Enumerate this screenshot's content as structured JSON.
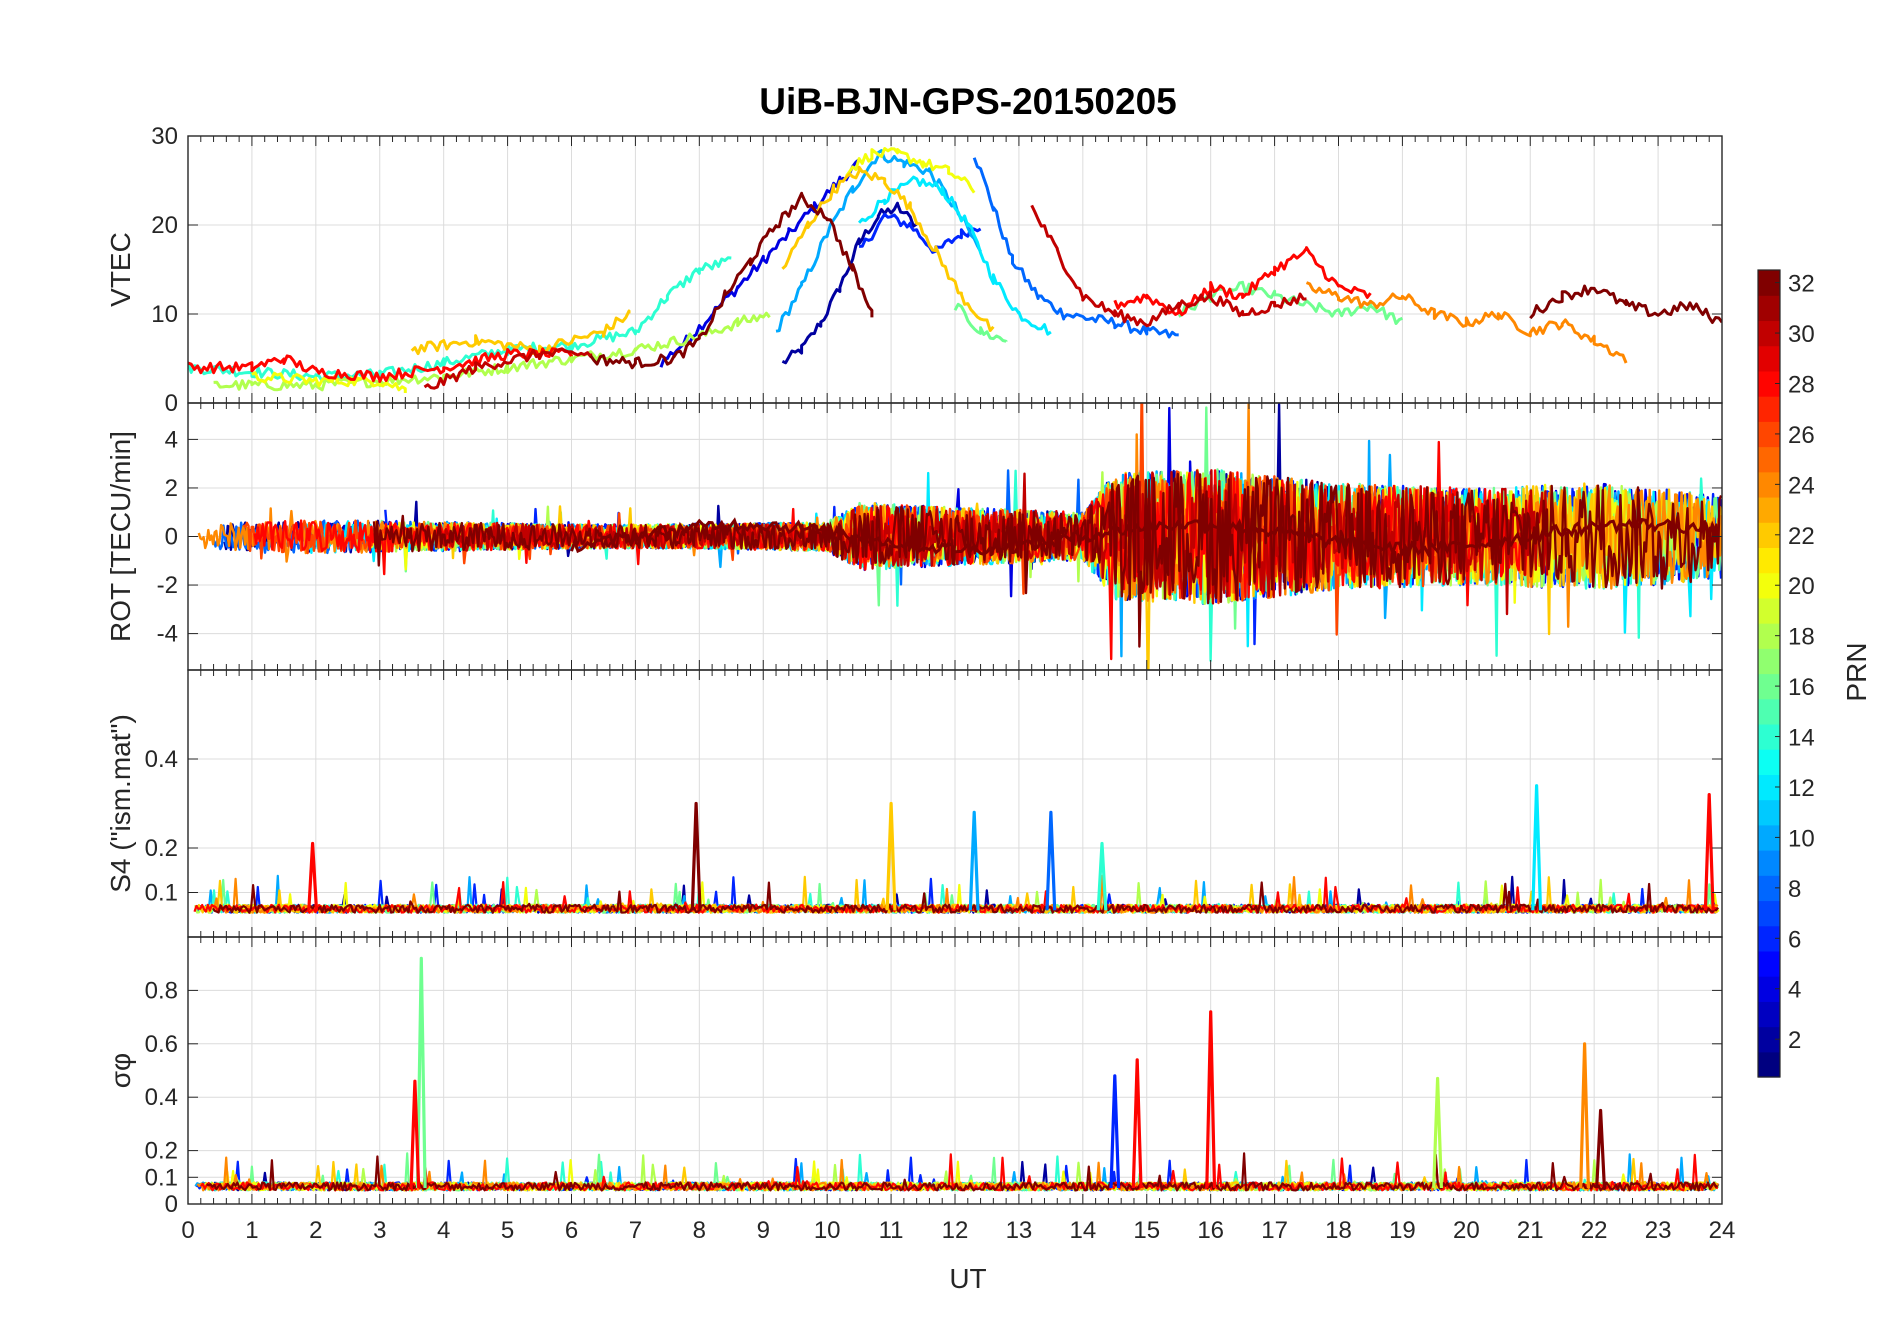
{
  "figure": {
    "title": "UiB-BJN-GPS-20150205",
    "x_label": "UT",
    "colorbar_label": "PRN"
  },
  "chart_data": [
    {
      "type": "line",
      "panel": "vtec",
      "ylabel": "VTEC",
      "xlim": [
        0,
        24
      ],
      "ylim": [
        0,
        30
      ],
      "yticks": [
        0,
        10,
        20,
        30
      ],
      "grid": true,
      "series": [
        {
          "prn": 2,
          "x": [
            9.3,
            9.6,
            9.9,
            10.2,
            10.5,
            10.8,
            11.1,
            11.4
          ],
          "y": [
            4.5,
            6,
            9,
            13,
            18,
            21,
            22,
            20
          ]
        },
        {
          "prn": 4,
          "x": [
            7.4,
            7.8,
            8.2,
            8.6,
            9,
            9.4,
            9.8,
            10.2,
            10.5
          ],
          "y": [
            4.5,
            7,
            10,
            13,
            16,
            19,
            22,
            25,
            27
          ]
        },
        {
          "prn": 6,
          "x": [
            10.5,
            10.9,
            11.3,
            11.7,
            12.1,
            12.4
          ],
          "y": [
            17,
            21,
            20,
            17,
            19,
            20
          ]
        },
        {
          "prn": 8,
          "x": [
            12.3,
            12.6,
            12.9,
            13.3,
            13.7,
            14.1,
            14.5,
            15,
            15.5
          ],
          "y": [
            28,
            22,
            16,
            12,
            10,
            9.5,
            9,
            8,
            7.5
          ]
        },
        {
          "prn": 10,
          "x": [
            9.2,
            9.6,
            10,
            10.4,
            10.8,
            11.2,
            11.6,
            12,
            12.4
          ],
          "y": [
            8,
            13,
            19,
            24,
            28,
            27,
            26,
            22,
            17
          ]
        },
        {
          "prn": 12,
          "x": [
            10.5,
            10.9,
            11.4,
            11.8,
            12.2,
            12.6,
            13,
            13.5
          ],
          "y": [
            20,
            23,
            25,
            24,
            20,
            14,
            10,
            8
          ]
        },
        {
          "prn": 14,
          "x": [
            0,
            1,
            2,
            3,
            4,
            5,
            6,
            7,
            7.5,
            8,
            8.5
          ],
          "y": [
            4,
            3.5,
            3,
            3.2,
            4.5,
            6,
            6.5,
            8,
            12,
            15,
            16
          ]
        },
        {
          "prn": 16,
          "x": [
            12,
            12.4,
            12.8,
            15.5,
            16,
            16.5,
            17,
            17.5,
            18,
            18.5,
            19
          ],
          "y": [
            11,
            8,
            7,
            10,
            12,
            13,
            12,
            11,
            10,
            11,
            9
          ]
        },
        {
          "prn": 18,
          "x": [
            0.4,
            1,
            2,
            3,
            4,
            5,
            6,
            7,
            8,
            8.6,
            9.1
          ],
          "y": [
            2,
            2,
            2,
            2.5,
            3,
            4,
            5,
            6,
            7.5,
            9,
            10
          ]
        },
        {
          "prn": 20,
          "x": [
            1,
            2,
            3,
            3.4,
            10.3,
            10.7,
            11.1,
            11.5,
            11.9,
            12.3
          ],
          "y": [
            3,
            2.5,
            2.5,
            1.5,
            26,
            28,
            28,
            27,
            26,
            24
          ]
        },
        {
          "prn": 22,
          "x": [
            3.5,
            4.5,
            5.5,
            6.5,
            6.9,
            9.3,
            9.7,
            10.1,
            10.5,
            10.9,
            11.3,
            11.7,
            12.1,
            12.6
          ],
          "y": [
            6,
            7,
            6,
            8,
            10,
            15,
            20,
            24,
            26,
            25,
            22,
            17,
            12,
            8
          ]
        },
        {
          "prn": 24,
          "x": [
            17.5,
            18,
            18.5,
            19,
            19.5,
            20,
            20.5,
            21,
            21.5,
            22,
            22.5
          ],
          "y": [
            13,
            12,
            11,
            12,
            10,
            9,
            10,
            8,
            9,
            7,
            5
          ]
        },
        {
          "prn": 28,
          "x": [
            0,
            1,
            1.5,
            2,
            3,
            4,
            5,
            6,
            14.5,
            15,
            15.5,
            16,
            16.5,
            17,
            17.5,
            18,
            18.5
          ],
          "y": [
            4,
            4,
            5,
            3.5,
            3,
            4,
            5.5,
            5.5,
            11,
            12,
            10,
            13,
            12,
            15,
            17,
            13,
            12
          ]
        },
        {
          "prn": 30,
          "x": [
            3.7,
            4.5,
            5.5,
            6.3,
            13.2,
            13.6,
            14,
            14.5,
            15,
            15.5,
            16,
            16.5,
            17,
            17.5
          ],
          "y": [
            1.5,
            4,
            5.5,
            5.5,
            22,
            17,
            12,
            10,
            9,
            11,
            12,
            10,
            11,
            12
          ]
        },
        {
          "prn": 32,
          "x": [
            6.3,
            7,
            7.6,
            8,
            8.4,
            8.8,
            9.2,
            9.6,
            10,
            10.4,
            10.7,
            21,
            21.5,
            22,
            22.5,
            23,
            23.5,
            24
          ],
          "y": [
            5,
            4.5,
            5,
            7,
            12,
            16,
            20,
            23,
            21,
            15,
            10,
            10,
            12,
            13,
            11,
            10,
            11,
            9
          ]
        }
      ]
    },
    {
      "type": "line",
      "panel": "rot",
      "ylabel": "ROT [TECU/min]",
      "xlim": [
        0,
        24
      ],
      "ylim": [
        -5.5,
        5.5
      ],
      "yticks": [
        -4,
        -2,
        0,
        2,
        4
      ],
      "grid": true,
      "note_profile": {
        "x": [
          0,
          2,
          4,
          6,
          8,
          10,
          10.5,
          12,
          14,
          14.5,
          16,
          18,
          20,
          22,
          24
        ],
        "amplitude": [
          0.5,
          0.7,
          0.6,
          0.5,
          0.5,
          0.6,
          1.4,
          1.2,
          1.0,
          2.6,
          2.8,
          2.2,
          2.0,
          2.2,
          1.8
        ]
      }
    },
    {
      "type": "line",
      "panel": "s4",
      "ylabel": "S4 (\"ism.mat\")",
      "xlim": [
        0,
        24
      ],
      "ylim": [
        0,
        0.6
      ],
      "yticks": [
        0.1,
        0.2,
        0.4
      ],
      "grid": true,
      "baseline": 0.06,
      "peaks": [
        {
          "x": 1.95,
          "y": 0.21,
          "prn": 28
        },
        {
          "x": 7.95,
          "y": 0.3,
          "prn": 32
        },
        {
          "x": 11.0,
          "y": 0.3,
          "prn": 22
        },
        {
          "x": 12.3,
          "y": 0.28,
          "prn": 10
        },
        {
          "x": 13.5,
          "y": 0.28,
          "prn": 8
        },
        {
          "x": 14.3,
          "y": 0.21,
          "prn": 14
        },
        {
          "x": 21.1,
          "y": 0.34,
          "prn": 12
        },
        {
          "x": 23.8,
          "y": 0.32,
          "prn": 28
        }
      ]
    },
    {
      "type": "line",
      "panel": "sigma_phi",
      "ylabel": "σφ",
      "xlim": [
        0,
        24
      ],
      "ylim": [
        0,
        1.0
      ],
      "yticks": [
        0,
        0.1,
        0.2,
        0.4,
        0.6,
        0.8
      ],
      "grid": true,
      "baseline": 0.06,
      "peaks": [
        {
          "x": 3.65,
          "y": 0.92,
          "prn": 16
        },
        {
          "x": 3.55,
          "y": 0.46,
          "prn": 28
        },
        {
          "x": 14.5,
          "y": 0.48,
          "prn": 6
        },
        {
          "x": 14.85,
          "y": 0.54,
          "prn": 28
        },
        {
          "x": 16.0,
          "y": 0.72,
          "prn": 28
        },
        {
          "x": 19.55,
          "y": 0.47,
          "prn": 18
        },
        {
          "x": 21.85,
          "y": 0.6,
          "prn": 24
        },
        {
          "x": 22.1,
          "y": 0.35,
          "prn": 32
        }
      ]
    }
  ],
  "x_axis": {
    "xlim": [
      0,
      24
    ],
    "ticks": [
      0,
      1,
      2,
      3,
      4,
      5,
      6,
      7,
      8,
      9,
      10,
      11,
      12,
      13,
      14,
      15,
      16,
      17,
      18,
      19,
      20,
      21,
      22,
      23,
      24
    ]
  },
  "colorbar": {
    "range": [
      1,
      32
    ],
    "ticks": [
      2,
      4,
      6,
      8,
      10,
      12,
      14,
      16,
      18,
      20,
      22,
      24,
      26,
      28,
      30,
      32
    ],
    "colormap": "jet",
    "levels": 32
  }
}
